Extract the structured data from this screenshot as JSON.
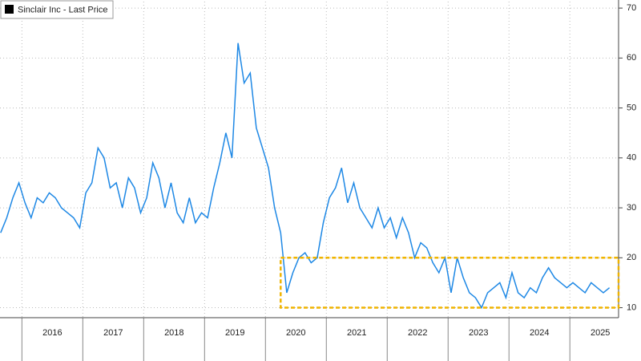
{
  "chart_data": {
    "type": "line",
    "x": [
      2015.65,
      2015.75,
      2015.85,
      2015.95,
      2016.05,
      2016.15,
      2016.25,
      2016.35,
      2016.45,
      2016.55,
      2016.65,
      2016.75,
      2016.85,
      2016.95,
      2017.05,
      2017.15,
      2017.25,
      2017.35,
      2017.45,
      2017.55,
      2017.65,
      2017.75,
      2017.85,
      2017.95,
      2018.05,
      2018.15,
      2018.25,
      2018.35,
      2018.45,
      2018.55,
      2018.65,
      2018.75,
      2018.85,
      2018.95,
      2019.05,
      2019.15,
      2019.25,
      2019.35,
      2019.45,
      2019.55,
      2019.65,
      2019.75,
      2019.85,
      2019.95,
      2020.05,
      2020.15,
      2020.25,
      2020.35,
      2020.45,
      2020.55,
      2020.65,
      2020.75,
      2020.85,
      2020.95,
      2021.05,
      2021.15,
      2021.25,
      2021.35,
      2021.45,
      2021.55,
      2021.65,
      2021.75,
      2021.85,
      2021.95,
      2022.05,
      2022.15,
      2022.25,
      2022.35,
      2022.45,
      2022.55,
      2022.65,
      2022.75,
      2022.85,
      2022.95,
      2023.05,
      2023.15,
      2023.25,
      2023.35,
      2023.45,
      2023.55,
      2023.65,
      2023.75,
      2023.85,
      2023.95,
      2024.05,
      2024.15,
      2024.25,
      2024.35,
      2024.45,
      2024.55,
      2024.65,
      2024.75,
      2024.85,
      2024.95,
      2025.05,
      2025.15,
      2025.25,
      2025.35,
      2025.45,
      2025.55,
      2025.65
    ],
    "series": [
      {
        "name": "Sinclair Inc - Last Price",
        "color": "#1e88e5",
        "values": [
          25,
          28,
          32,
          35,
          31,
          28,
          32,
          31,
          33,
          32,
          30,
          29,
          28,
          26,
          33,
          35,
          42,
          40,
          34,
          35,
          30,
          36,
          34,
          29,
          32,
          39,
          36,
          30,
          35,
          29,
          27,
          32,
          27,
          29,
          28,
          34,
          39,
          45,
          40,
          63,
          55,
          57,
          46,
          42,
          38,
          30,
          25,
          13,
          17,
          20,
          21,
          19,
          20,
          27,
          32,
          34,
          38,
          31,
          35,
          30,
          28,
          26,
          30,
          26,
          28,
          24,
          28,
          25,
          20,
          23,
          22,
          19,
          17,
          20,
          13,
          20,
          16,
          13,
          12,
          10,
          13,
          14,
          15,
          12,
          17,
          13,
          12,
          14,
          13,
          16,
          18,
          16,
          15,
          14,
          15,
          14,
          13,
          15,
          14,
          13,
          14
        ]
      }
    ],
    "xlim": [
      2015.64,
      2025.8
    ],
    "xticks": [
      {
        "value": 2016,
        "label": "2016"
      },
      {
        "value": 2017,
        "label": "2017"
      },
      {
        "value": 2018,
        "label": "2018"
      },
      {
        "value": 2019,
        "label": "2019"
      },
      {
        "value": 2020,
        "label": "2020"
      },
      {
        "value": 2021,
        "label": "2021"
      },
      {
        "value": 2022,
        "label": "2022"
      },
      {
        "value": 2023,
        "label": "2023"
      },
      {
        "value": 2024,
        "label": "2024"
      },
      {
        "value": 2025,
        "label": "2025"
      }
    ],
    "ylim": [
      8,
      71.3
    ],
    "yticks": [
      10,
      20,
      30,
      40,
      50,
      60,
      70
    ],
    "grid": true,
    "highlight": {
      "x": [
        2020.25,
        2025.8
      ],
      "y": [
        10,
        20
      ],
      "color": "#f0b400"
    }
  }
}
